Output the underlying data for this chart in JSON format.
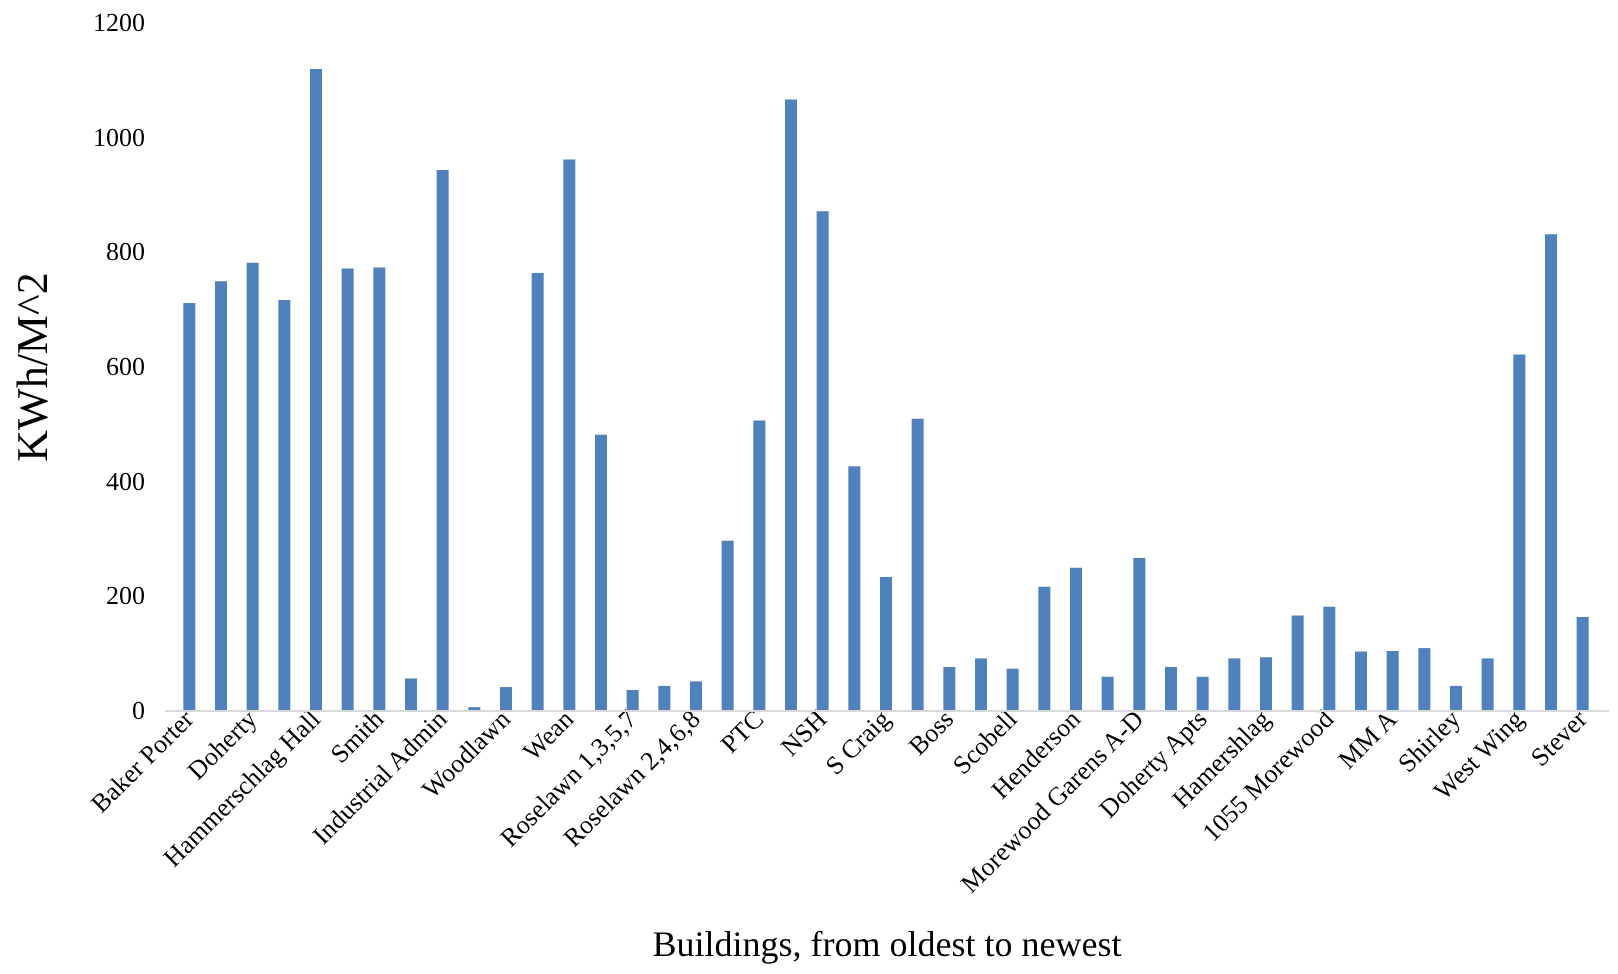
{
  "chart_data": {
    "type": "bar",
    "xlabel": "Buildings, from oldest to newest",
    "ylabel": "KWh/M^2",
    "categories": [
      "Baker Porter",
      null,
      "Doherty",
      null,
      "Hammerschlag Hall",
      null,
      "Smith",
      null,
      "Industrial Admin",
      null,
      "Woodlawn",
      null,
      "Wean",
      null,
      "Roselawn 1,3,5,7",
      null,
      "Roselawn 2,4,6,8",
      null,
      "PTC",
      null,
      "NSH",
      null,
      "S Craig",
      null,
      "Boss",
      null,
      "Scobell",
      null,
      "Henderson",
      null,
      "Morewood Garens A-D",
      null,
      "Doherty Apts",
      null,
      "Hamershlag",
      null,
      "1055 Morewood",
      null,
      "MM A",
      null,
      "Shirley",
      null,
      "West Wing",
      null,
      "Stever"
    ],
    "values": [
      710,
      748,
      780,
      715,
      1118,
      770,
      772,
      55,
      942,
      5,
      40,
      762,
      960,
      480,
      35,
      42,
      50,
      295,
      505,
      1065,
      870,
      425,
      232,
      508,
      75,
      90,
      72,
      215,
      248,
      58,
      265,
      75,
      58,
      90,
      92,
      165,
      180,
      102,
      103,
      108,
      42,
      90,
      620,
      830,
      162
    ],
    "color": "#4f81bd",
    "ylim": [
      0,
      1200
    ],
    "yticks": [
      0,
      200,
      400,
      600,
      800,
      1000,
      1200
    ],
    "grid": false
  }
}
